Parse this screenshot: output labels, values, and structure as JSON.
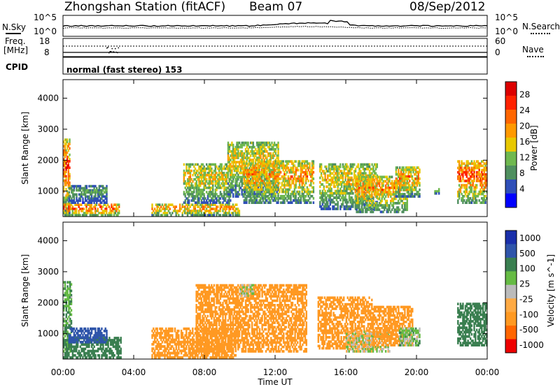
{
  "header": {
    "station": "Zhongshan Station (fitACF)",
    "beam": "Beam 07",
    "date": "08/Sep/2012"
  },
  "summary_panel": {
    "left_top_label": "N.Sky",
    "right_top_label": "N.Search",
    "left_ticks": [
      "10^5",
      "10^0"
    ],
    "right_ticks": [
      "10^5",
      "10^0"
    ],
    "freq_label_line1": "Freq.",
    "freq_label_line2": "[MHz]",
    "freq_ticks": [
      "18",
      "8"
    ],
    "nave_label": "Nave",
    "nave_ticks": [
      "60",
      "0"
    ],
    "cpid_label": "CPID",
    "cpid_text": "normal (fast stereo) 153"
  },
  "x_axis": {
    "title": "Time UT",
    "ticks": [
      "00:00",
      "04:00",
      "08:00",
      "12:00",
      "16:00",
      "20:00",
      "00:00"
    ]
  },
  "colors": {
    "power_scale": [
      "#0000ff",
      "#2f4fb8",
      "#4f8f5f",
      "#6fb84f",
      "#e8c800",
      "#ff9900",
      "#ff6600",
      "#ff2200",
      "#dd0000"
    ],
    "velocity_scale": [
      "#ee0000",
      "#ff6600",
      "#ff9922",
      "#ffaa44",
      "#bbbbbb",
      "#66bb44",
      "#3a7f50",
      "#2f55aa",
      "#1a2faa"
    ]
  },
  "chart_data": [
    {
      "type": "heatmap",
      "title": "",
      "xlabel": "Time UT",
      "ylabel": "Slant Range [km]",
      "xlim": [
        0,
        24
      ],
      "ylim": [
        180,
        4600
      ],
      "y_ticks": [
        "1000",
        "2000",
        "3000",
        "4000"
      ],
      "colorbar": {
        "label": "Power [dB]",
        "ticks": [
          "4",
          "8",
          "12",
          "16",
          "20",
          "24",
          "28"
        ],
        "range": [
          0,
          30
        ]
      },
      "echo_regions": [
        {
          "t_start": 0.0,
          "t_end": 0.4,
          "range_start": 200,
          "range_end": 2700,
          "peak": 28
        },
        {
          "t_start": 0.0,
          "t_end": 3.2,
          "range_start": 200,
          "range_end": 600,
          "peak": 28
        },
        {
          "t_start": 0.3,
          "t_end": 2.5,
          "range_start": 600,
          "range_end": 1200,
          "peak": 12
        },
        {
          "t_start": 5.0,
          "t_end": 10.0,
          "range_start": 200,
          "range_end": 600,
          "peak": 24
        },
        {
          "t_start": 6.8,
          "t_end": 9.5,
          "range_start": 600,
          "range_end": 1900,
          "peak": 20
        },
        {
          "t_start": 9.3,
          "t_end": 12.2,
          "range_start": 800,
          "range_end": 2600,
          "peak": 20
        },
        {
          "t_start": 10.2,
          "t_end": 14.2,
          "range_start": 600,
          "range_end": 2000,
          "peak": 24
        },
        {
          "t_start": 14.5,
          "t_end": 17.8,
          "range_start": 400,
          "range_end": 1900,
          "peak": 20
        },
        {
          "t_start": 16.5,
          "t_end": 19.5,
          "range_start": 300,
          "range_end": 1500,
          "peak": 24
        },
        {
          "t_start": 18.8,
          "t_end": 20.2,
          "range_start": 800,
          "range_end": 1800,
          "peak": 24
        },
        {
          "t_start": 21.0,
          "t_end": 21.3,
          "range_start": 900,
          "range_end": 1100,
          "peak": 16
        },
        {
          "t_start": 22.3,
          "t_end": 24.0,
          "range_start": 600,
          "range_end": 2000,
          "peak": 28
        }
      ]
    },
    {
      "type": "heatmap",
      "title": "",
      "xlabel": "Time UT",
      "ylabel": "Slant Range [km]",
      "xlim": [
        0,
        24
      ],
      "ylim": [
        180,
        4600
      ],
      "y_ticks": [
        "1000",
        "2000",
        "3000",
        "4000"
      ],
      "colorbar": {
        "label": "Velocity [m s^-1]",
        "ticks": [
          "1000",
          "500",
          "100",
          "25",
          "-25",
          "-100",
          "-500",
          "-1000"
        ],
        "range": [
          -1200,
          1200
        ]
      },
      "echo_regions": [
        {
          "t_start": 0.0,
          "t_end": 0.5,
          "range_start": 400,
          "range_end": 2700,
          "velocity": 100
        },
        {
          "t_start": 0.0,
          "t_end": 3.3,
          "range_start": 200,
          "range_end": 900,
          "velocity": 200
        },
        {
          "t_start": 0.3,
          "t_end": 2.5,
          "range_start": 700,
          "range_end": 1200,
          "velocity": 800
        },
        {
          "t_start": 5.0,
          "t_end": 9.8,
          "range_start": 200,
          "range_end": 1200,
          "velocity": -300
        },
        {
          "t_start": 7.5,
          "t_end": 13.8,
          "range_start": 400,
          "range_end": 2600,
          "velocity": -300
        },
        {
          "t_start": 10.0,
          "t_end": 10.8,
          "range_start": 2200,
          "range_end": 2600,
          "velocity": 0
        },
        {
          "t_start": 14.4,
          "t_end": 17.5,
          "range_start": 500,
          "range_end": 2200,
          "velocity": -300
        },
        {
          "t_start": 16.0,
          "t_end": 18.5,
          "range_start": 400,
          "range_end": 1100,
          "velocity": 0
        },
        {
          "t_start": 17.5,
          "t_end": 19.8,
          "range_start": 600,
          "range_end": 1900,
          "velocity": -300
        },
        {
          "t_start": 19.0,
          "t_end": 20.2,
          "range_start": 600,
          "range_end": 1200,
          "velocity": 50
        },
        {
          "t_start": 22.3,
          "t_end": 24.0,
          "range_start": 600,
          "range_end": 2000,
          "velocity": 200
        }
      ]
    }
  ]
}
